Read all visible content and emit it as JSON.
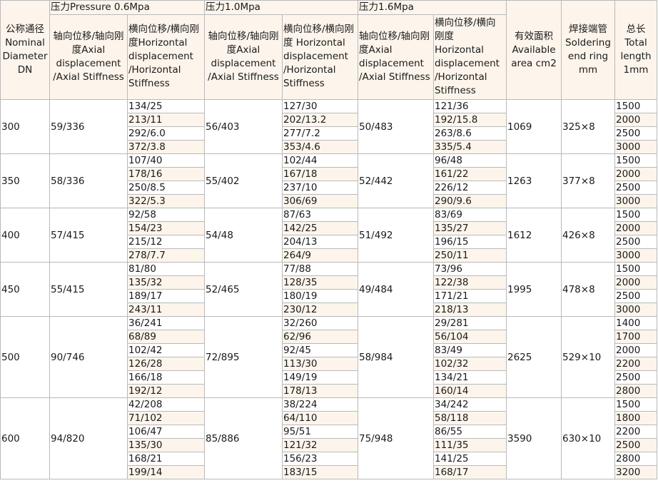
{
  "header": {
    "dn": "公称通径 Nominal Diameter DN",
    "p06": "压力Pressure 0.6Mpa",
    "p10": "压力1.0Mpa",
    "p16": "压力1.6Mpa",
    "axial06": "轴向位移/轴向刚度Axial displacement /Axial Stiffness",
    "horiz06": "横向位移/横向刚度Horizontal displacement /Horizontal Stiffness",
    "axial10": "轴向位移/轴向刚度Axial displacement /Axial Stiffness",
    "horiz10": "横向位移/横向刚度 Horizontal displacement /Horizontal Stiffness",
    "axial16": "轴向位移/轴向刚度Axial displacement /Axial Stiffness",
    "horiz16": "横向位移/横向刚度 Horizontal displacement /Horizontal Stiffness",
    "area": "有效面积 Available area cm2",
    "ring": "焊接端管 Soldering end ring mm",
    "length": "总长 Total length 1mm"
  },
  "rows": [
    {
      "dn": "300",
      "axial06": "59/336",
      "axial10": "56/403",
      "axial16": "50/483",
      "area": "1069",
      "ring": "325×8",
      "h06": [
        "134/25",
        "213/11",
        "292/6.0",
        "372/3.8"
      ],
      "h10": [
        "127/30",
        "202/13.2",
        "277/7.2",
        "353/4.6"
      ],
      "h16": [
        "121/36",
        "192/15.8",
        "263/8.6",
        "335/5.4"
      ],
      "len": [
        "1500",
        "2000",
        "2500",
        "3000"
      ]
    },
    {
      "dn": "350",
      "axial06": "58/336",
      "axial10": "55/402",
      "axial16": "52/442",
      "area": "1263",
      "ring": "377×8",
      "h06": [
        "107/40",
        "178/16",
        "250/8.5",
        "322/5.3"
      ],
      "h10": [
        "102/44",
        "167/18",
        "237/10",
        "306/69"
      ],
      "h16": [
        "96/48",
        "161/22",
        "226/12",
        "290/9.6"
      ],
      "len": [
        "1500",
        "2000",
        "2500",
        "3000"
      ]
    },
    {
      "dn": "400",
      "axial06": "57/415",
      "axial10": "54/48",
      "axial16": "51/492",
      "area": "1612",
      "ring": "426×8",
      "h06": [
        "92/58",
        "154/23",
        "215/12",
        "278/7.7"
      ],
      "h10": [
        "87/63",
        "142/25",
        "204/13",
        "264/9"
      ],
      "h16": [
        "83/69",
        "135/27",
        "196/15",
        "250/11"
      ],
      "len": [
        "1500",
        "2000",
        "2500",
        "3000"
      ]
    },
    {
      "dn": "450",
      "axial06": "55/415",
      "axial10": "52/465",
      "axial16": "49/484",
      "area": "1995",
      "ring": "478×8",
      "h06": [
        "81/80",
        "135/32",
        "189/17",
        "243/11"
      ],
      "h10": [
        "77/88",
        "128/35",
        "180/19",
        "230/12"
      ],
      "h16": [
        "73/96",
        "122/38",
        "171/21",
        "218/13"
      ],
      "len": [
        "1500",
        "2000",
        "2500",
        "3000"
      ]
    },
    {
      "dn": "500",
      "axial06": "90/746",
      "axial10": "72/895",
      "axial16": "58/984",
      "area": "2625",
      "ring": "529×10",
      "h06": [
        "36/241",
        "68/89",
        "102/42",
        "126/28",
        "166/18",
        "192/12"
      ],
      "h10": [
        "32/260",
        "62/96",
        "92/45",
        "113/30",
        "149/19",
        "178/13"
      ],
      "h16": [
        "29/281",
        "56/104",
        "83/49",
        "102/32",
        "134/21",
        "160/14"
      ],
      "len": [
        "1400",
        "1700",
        "2000",
        "2200",
        "2500",
        "2800"
      ]
    },
    {
      "dn": "600",
      "axial06": "94/820",
      "axial10": "85/886",
      "axial16": "75/948",
      "area": "3590",
      "ring": "630×10",
      "h06": [
        "42/208",
        "71/102",
        "106/47",
        "135/30",
        "168/21",
        "199/14"
      ],
      "h10": [
        "38/224",
        "64/110",
        "95/51",
        "121/32",
        "156/23",
        "183/15"
      ],
      "h16": [
        "34/242",
        "58/118",
        "86/55",
        "111/35",
        "141/25",
        "168/17"
      ],
      "len": [
        "1500",
        "1800",
        "2200",
        "2500",
        "2800",
        "3200"
      ]
    }
  ]
}
